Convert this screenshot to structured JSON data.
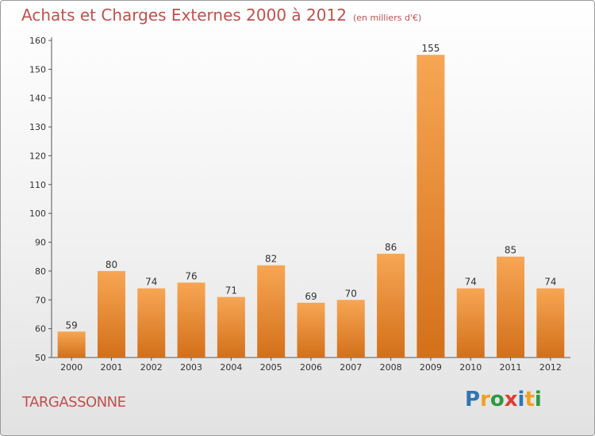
{
  "title": "Achats et Charges Externes 2000 à 2012",
  "unit": "(en milliers d'€)",
  "commune": "TARGASSONNE",
  "logo": {
    "letters": [
      "P",
      "r",
      "o",
      "x",
      "i",
      "t",
      "i"
    ],
    "colors": [
      "#2e75b6",
      "#f0a020",
      "#2e9a3e",
      "#e03c31",
      "#2e75b6",
      "#f0a020",
      "#2e9a3e"
    ]
  },
  "colors": {
    "bar_top": "#f7a654",
    "bar_bottom": "#d3701a",
    "accent": "#c0504d"
  },
  "chart_data": {
    "type": "bar",
    "categories": [
      "2000",
      "2001",
      "2002",
      "2003",
      "2004",
      "2005",
      "2006",
      "2007",
      "2008",
      "2009",
      "2010",
      "2011",
      "2012"
    ],
    "values": [
      59,
      80,
      74,
      76,
      71,
      82,
      69,
      70,
      86,
      155,
      74,
      85,
      74
    ],
    "ylim": [
      50,
      160
    ],
    "yticks": [
      50,
      60,
      70,
      80,
      90,
      100,
      110,
      120,
      130,
      140,
      150,
      160
    ],
    "grid": false,
    "title": "Achats et Charges Externes 2000 à 2012",
    "xlabel": "",
    "ylabel": ""
  }
}
